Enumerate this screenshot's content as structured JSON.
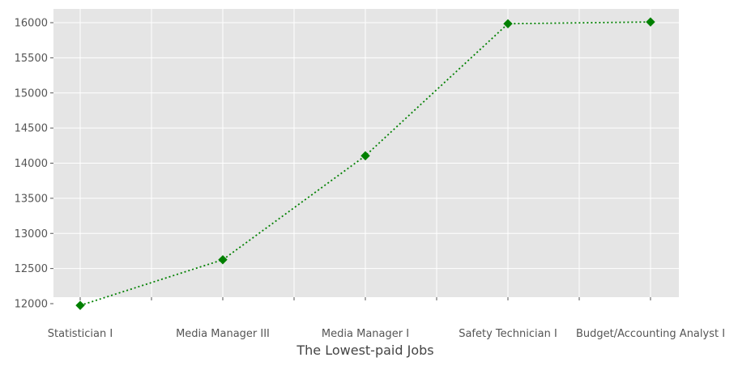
{
  "chart_data": {
    "type": "line",
    "title": "",
    "xlabel": "The Lowest-paid Jobs",
    "ylabel": "",
    "categories": [
      "Statistician I",
      "Media Manager III",
      "Media Manager I",
      "Safety Technician I",
      "Budget/Accounting Analyst I"
    ],
    "series": [
      {
        "values": [
          11975,
          12625,
          14105,
          15985,
          16010
        ]
      }
    ],
    "ylim": [
      11800,
      16200
    ],
    "yticks": [
      12000,
      12500,
      13000,
      13500,
      14000,
      14500,
      15000,
      15500,
      16000
    ],
    "grid": true,
    "legend": "none",
    "line_style": "dotted",
    "marker": "diamond",
    "colors": {
      "series": "#008000",
      "plot_background": "#e5e5e5",
      "grid": "#ffffff",
      "tick_text": "#555555",
      "label_text": "#444444"
    }
  }
}
